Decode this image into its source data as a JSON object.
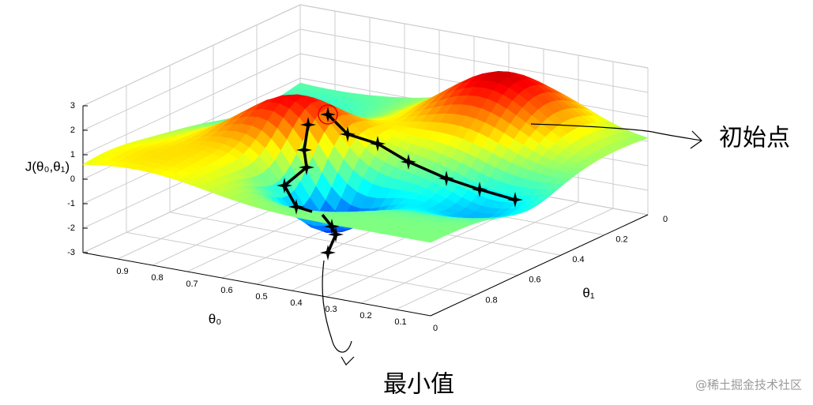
{
  "chart_data": {
    "type": "surface",
    "zlabel": "J(θ₀,θ₁)",
    "xlabel": "θ₀",
    "ylabel": "θ₁",
    "xlim": [
      0,
      1
    ],
    "xticks": [
      0,
      0.1,
      0.2,
      0.3,
      0.4,
      0.5,
      0.6,
      0.7,
      0.8,
      0.9
    ],
    "ylim": [
      0,
      1
    ],
    "yticks": [
      0,
      0.2,
      0.4,
      0.6,
      0.8
    ],
    "zlim": [
      -3,
      3
    ],
    "zticks": [
      -3,
      -2,
      -1,
      0,
      1,
      2,
      3
    ],
    "grid": true,
    "annotations": [
      "初始点",
      "最小值"
    ]
  },
  "watermark": "@稀土掘金技术社区"
}
